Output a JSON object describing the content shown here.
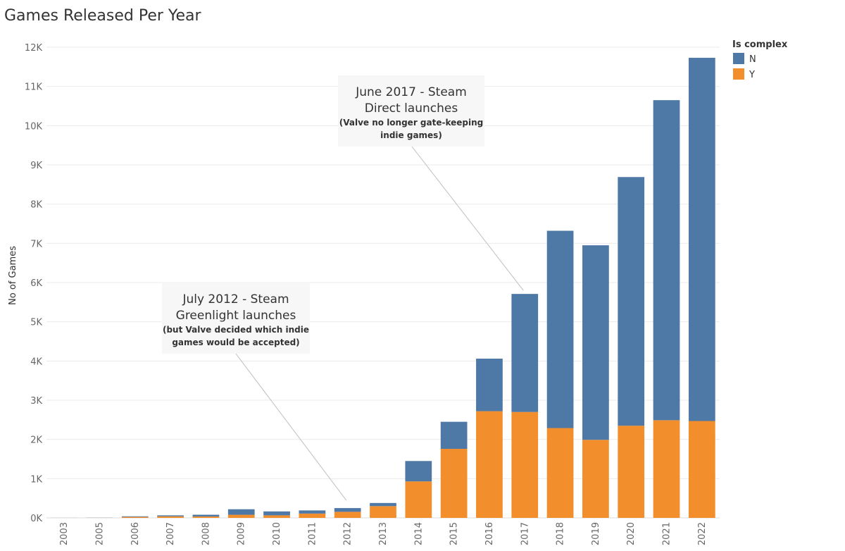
{
  "chart_data": {
    "type": "bar",
    "stacked": true,
    "title": "Games Released Per Year",
    "xlabel": "",
    "ylabel": "No of Games",
    "ylim": [
      0,
      12000
    ],
    "yticks": [
      0,
      1000,
      2000,
      3000,
      4000,
      5000,
      6000,
      7000,
      8000,
      9000,
      10000,
      11000,
      12000
    ],
    "ytick_labels": [
      "0K",
      "1K",
      "2K",
      "3K",
      "4K",
      "5K",
      "6K",
      "7K",
      "8K",
      "9K",
      "10K",
      "11K",
      "12K"
    ],
    "categories": [
      "2003",
      "2005",
      "2006",
      "2007",
      "2008",
      "2009",
      "2010",
      "2011",
      "2012",
      "2013",
      "2014",
      "2015",
      "2016",
      "2017",
      "2018",
      "2019",
      "2020",
      "2021",
      "2022"
    ],
    "series": [
      {
        "name": "Y",
        "color": "#f28e2b",
        "values": [
          1,
          2,
          25,
          40,
          35,
          80,
          65,
          110,
          155,
          300,
          930,
          1760,
          2720,
          2700,
          2290,
          1990,
          2350,
          2490,
          2470
        ]
      },
      {
        "name": "N",
        "color": "#4e79a7",
        "values": [
          1,
          3,
          15,
          25,
          45,
          140,
          100,
          80,
          95,
          80,
          520,
          690,
          1340,
          3010,
          5030,
          4960,
          6340,
          8160,
          9260
        ]
      }
    ],
    "grid": true,
    "legend": {
      "title": "Is complex",
      "placement": "top-right",
      "entries": [
        "N",
        "Y"
      ]
    },
    "annotations": [
      {
        "title_lines": [
          "June 2017 - Steam",
          "Direct launches"
        ],
        "note_lines": [
          "(Valve no longer gate-keeping",
          "indie games)"
        ],
        "target_category": "2017",
        "target_value": 5800
      },
      {
        "title_lines": [
          "July 2012 - Steam",
          "Greenlight launches"
        ],
        "note_lines": [
          "(but Valve decided which indie",
          "games would be accepted)"
        ],
        "target_category": "2012",
        "target_value": 450
      }
    ]
  }
}
